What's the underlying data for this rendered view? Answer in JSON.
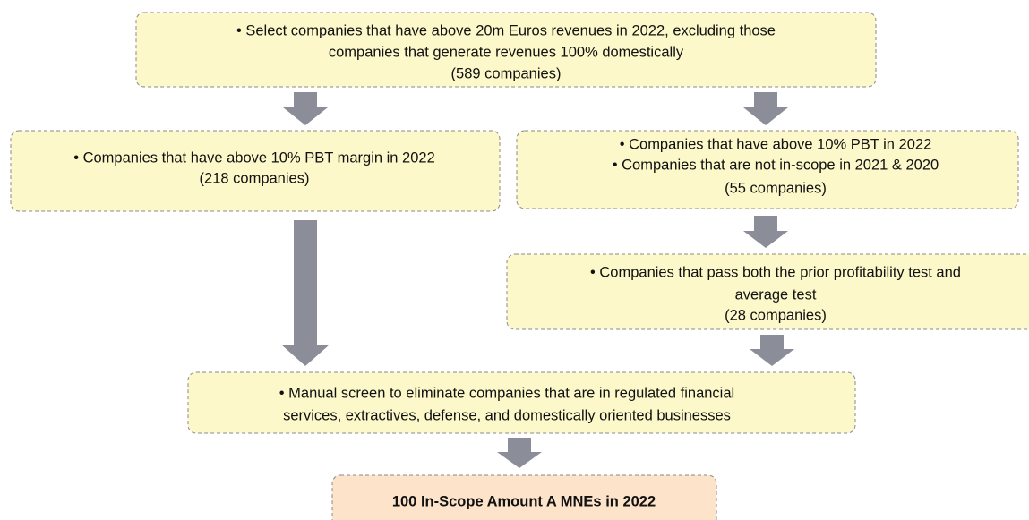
{
  "nodes": [
    {
      "lines": [
        "• Select companies that have above 20m Euros revenues in 2022, excluding those",
        "companies that generate revenues 100% domestically",
        "(589 companies)"
      ]
    },
    {
      "lines": [
        "• Companies that have above 10% PBT margin in 2022",
        "(218 companies)"
      ]
    },
    {
      "lines": [
        "• Companies that have above 10% PBT in 2022",
        "• Companies that are not in-scope in 2021 & 2020",
        "(55 companies)"
      ]
    },
    {
      "lines": [
        "• Companies that pass both the prior profitability test and",
        "average test",
        "(28 companies)"
      ]
    },
    {
      "lines": [
        "• Manual screen to eliminate companies that are in regulated financial",
        "services, extractives, defense, and domestically oriented businesses"
      ]
    },
    {
      "lines": [
        "100 In-Scope Amount A MNEs in 2022"
      ]
    }
  ]
}
